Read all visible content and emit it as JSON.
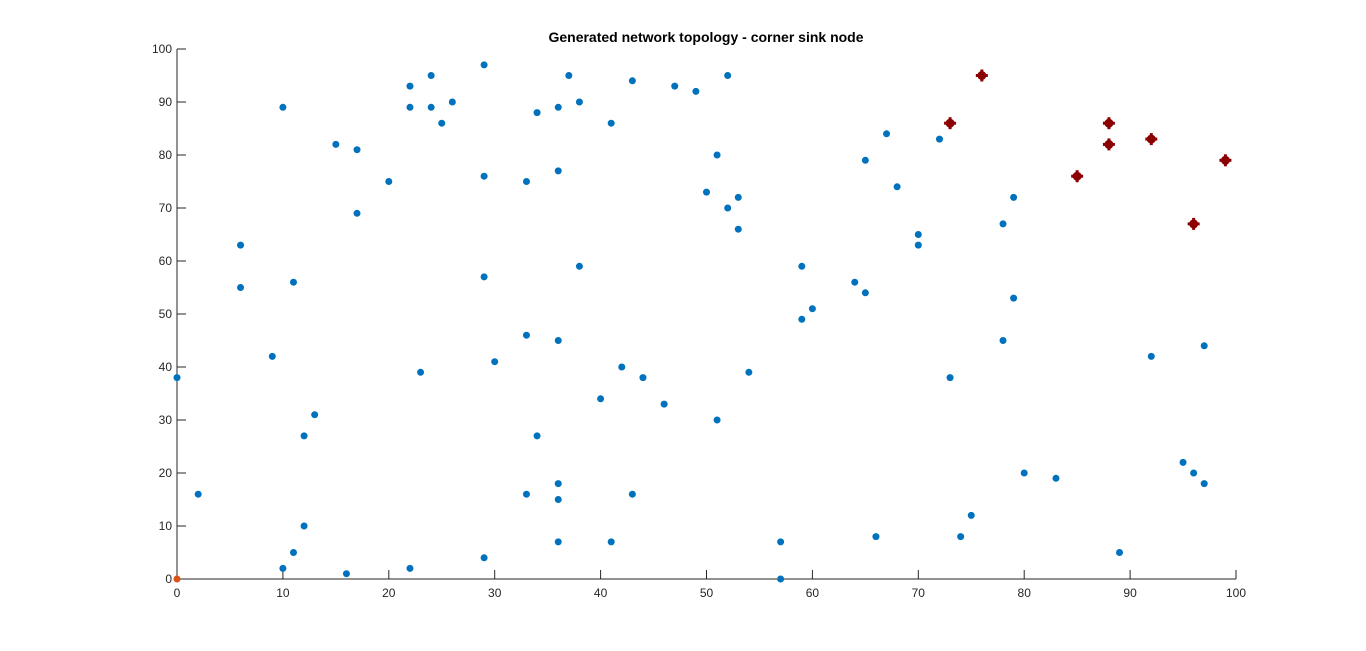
{
  "chart_data": {
    "type": "scatter",
    "title": "Generated network topology - corner sink node",
    "xlabel": "",
    "ylabel": "",
    "xlim": [
      0,
      100
    ],
    "ylim": [
      0,
      100
    ],
    "xticks": [
      "0",
      "10",
      "20",
      "30",
      "40",
      "50",
      "60",
      "70",
      "80",
      "90",
      "100"
    ],
    "yticks": [
      "0",
      "10",
      "20",
      "30",
      "40",
      "50",
      "60",
      "70",
      "80",
      "90",
      "100"
    ],
    "grid": false,
    "colors": {
      "sensor_nodes": "#0072BD",
      "sink_node": "#D95319",
      "highlighted_nodes": "#8B0000"
    },
    "series": [
      {
        "marker": "dot",
        "points": [
          [
            0,
            38
          ],
          [
            2,
            16
          ],
          [
            6,
            63
          ],
          [
            6,
            55
          ],
          [
            9,
            42
          ],
          [
            10,
            89
          ],
          [
            10,
            2
          ],
          [
            11,
            56
          ],
          [
            11,
            5
          ],
          [
            12,
            27
          ],
          [
            12,
            10
          ],
          [
            13,
            31
          ],
          [
            15,
            82
          ],
          [
            16,
            1
          ],
          [
            17,
            81
          ],
          [
            17,
            69
          ],
          [
            20,
            75
          ],
          [
            22,
            93
          ],
          [
            22,
            89
          ],
          [
            22,
            2
          ],
          [
            23,
            39
          ],
          [
            24,
            95
          ],
          [
            24,
            89
          ],
          [
            25,
            86
          ],
          [
            26,
            90
          ],
          [
            29,
            97
          ],
          [
            29,
            76
          ],
          [
            29,
            57
          ],
          [
            29,
            4
          ],
          [
            30,
            41
          ],
          [
            33,
            75
          ],
          [
            33,
            46
          ],
          [
            33,
            16
          ],
          [
            34,
            88
          ],
          [
            34,
            27
          ],
          [
            36,
            89
          ],
          [
            36,
            77
          ],
          [
            36,
            45
          ],
          [
            36,
            18
          ],
          [
            36,
            15
          ],
          [
            36,
            7
          ],
          [
            37,
            95
          ],
          [
            38,
            90
          ],
          [
            38,
            59
          ],
          [
            40,
            34
          ],
          [
            41,
            86
          ],
          [
            41,
            7
          ],
          [
            42,
            40
          ],
          [
            43,
            94
          ],
          [
            43,
            16
          ],
          [
            44,
            38
          ],
          [
            46,
            33
          ],
          [
            47,
            93
          ],
          [
            49,
            92
          ],
          [
            50,
            73
          ],
          [
            51,
            80
          ],
          [
            51,
            30
          ],
          [
            52,
            95
          ],
          [
            52,
            70
          ],
          [
            53,
            72
          ],
          [
            53,
            66
          ],
          [
            54,
            39
          ],
          [
            57,
            7
          ],
          [
            57,
            0
          ],
          [
            59,
            59
          ],
          [
            59,
            49
          ],
          [
            60,
            51
          ],
          [
            64,
            56
          ],
          [
            65,
            79
          ],
          [
            65,
            54
          ],
          [
            66,
            8
          ],
          [
            67,
            84
          ],
          [
            68,
            74
          ],
          [
            70,
            65
          ],
          [
            70,
            63
          ],
          [
            72,
            83
          ],
          [
            73,
            38
          ],
          [
            74,
            8
          ],
          [
            75,
            12
          ],
          [
            78,
            67
          ],
          [
            78,
            45
          ],
          [
            79,
            72
          ],
          [
            79,
            53
          ],
          [
            80,
            20
          ],
          [
            83,
            19
          ],
          [
            89,
            5
          ],
          [
            92,
            42
          ],
          [
            95,
            22
          ],
          [
            96,
            20
          ],
          [
            97,
            44
          ],
          [
            97,
            18
          ]
        ]
      },
      {
        "marker": "dot",
        "points": [
          [
            0,
            0
          ]
        ]
      },
      {
        "marker": "plus",
        "points": [
          [
            73,
            86
          ],
          [
            76,
            95
          ],
          [
            85,
            76
          ],
          [
            88,
            86
          ],
          [
            88,
            82
          ],
          [
            92,
            83
          ],
          [
            96,
            67
          ],
          [
            99,
            79
          ]
        ]
      }
    ]
  }
}
